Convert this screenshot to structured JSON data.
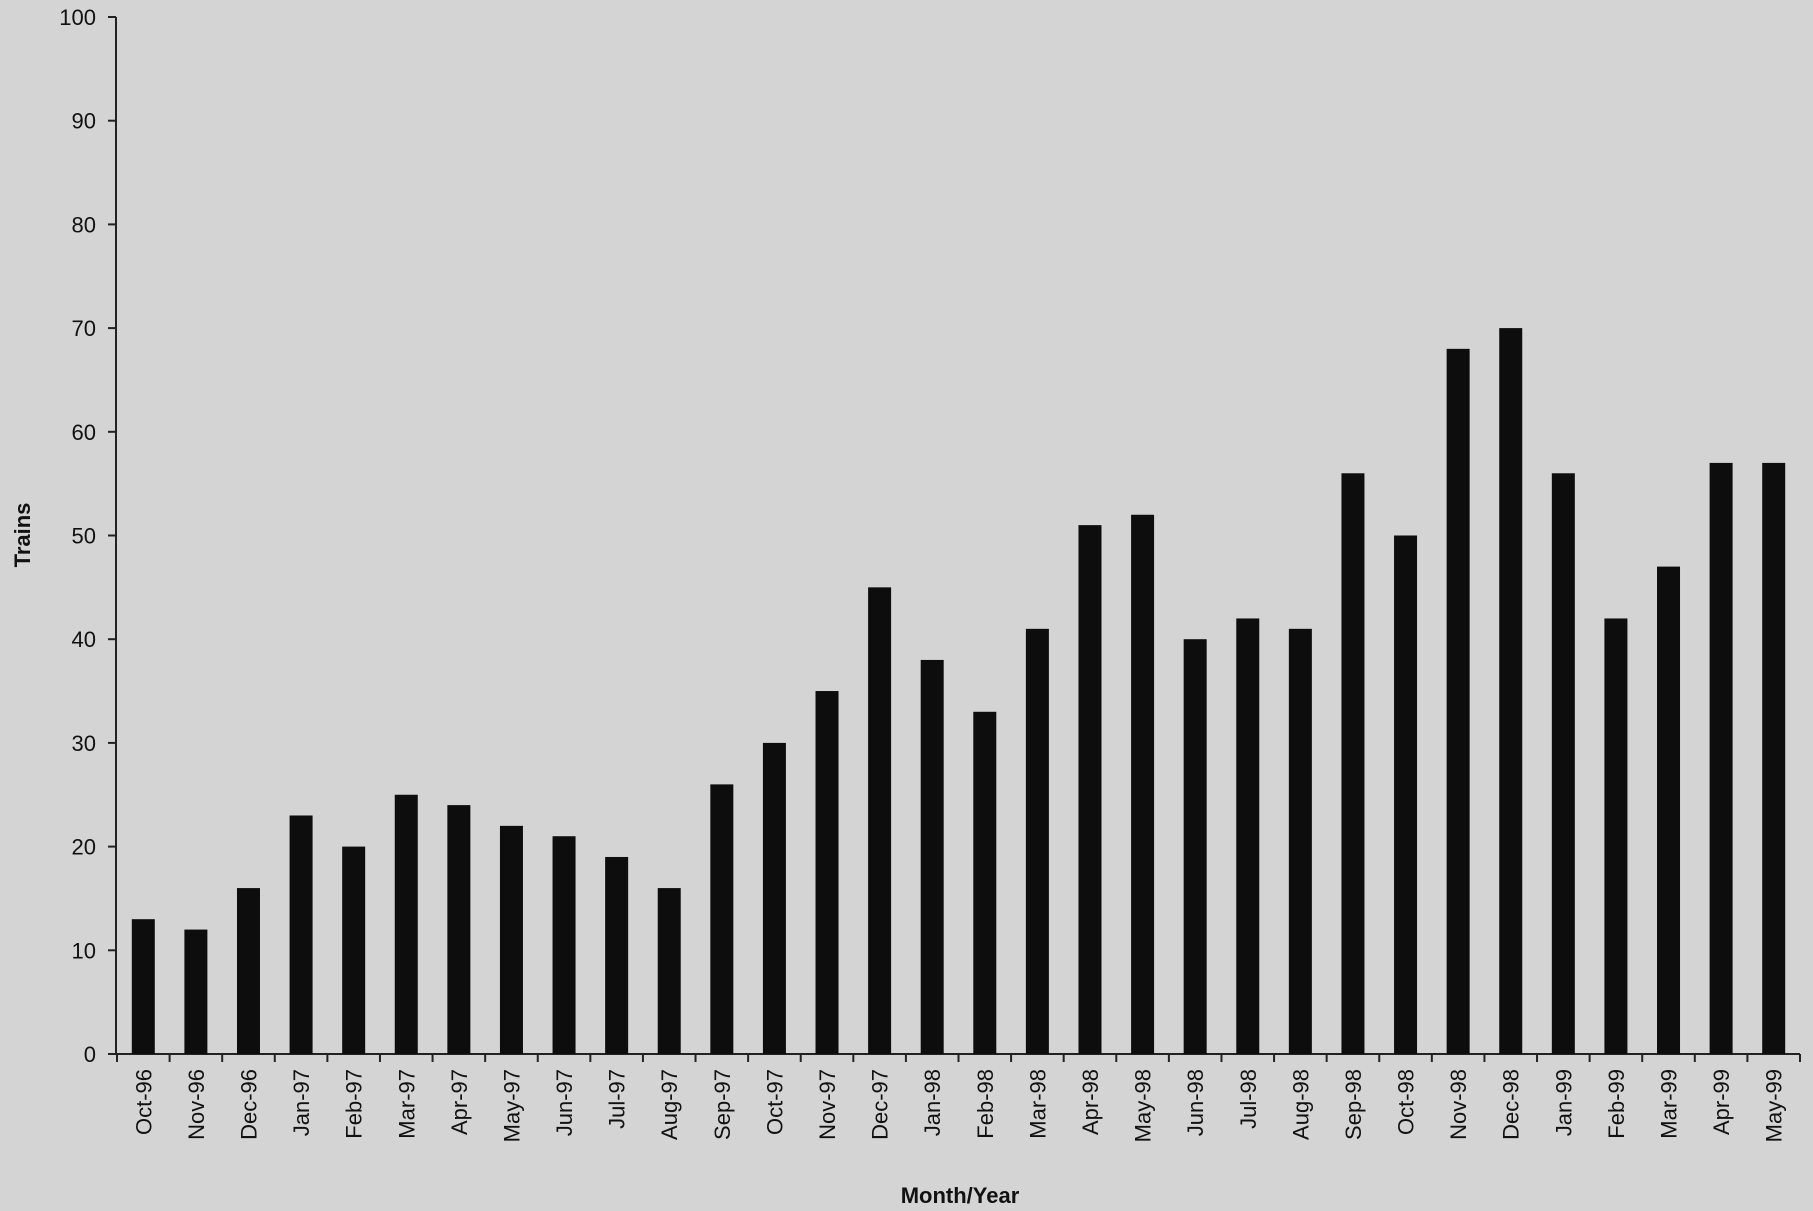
{
  "chart_data": {
    "type": "bar",
    "title": "",
    "xlabel": "Month/Year",
    "ylabel": "Trains",
    "ylim": [
      0,
      100
    ],
    "yticks": [
      0,
      10,
      20,
      30,
      40,
      50,
      60,
      70,
      80,
      90,
      100
    ],
    "grid": false,
    "bar_color": "#0d0d0d",
    "background_color": "#d4d4d4",
    "categories": [
      "Oct-96",
      "Nov-96",
      "Dec-96",
      "Jan-97",
      "Feb-97",
      "Mar-97",
      "Apr-97",
      "May-97",
      "Jun-97",
      "Jul-97",
      "Aug-97",
      "Sep-97",
      "Oct-97",
      "Nov-97",
      "Dec-97",
      "Jan-98",
      "Feb-98",
      "Mar-98",
      "Apr-98",
      "May-98",
      "Jun-98",
      "Jul-98",
      "Aug-98",
      "Sep-98",
      "Oct-98",
      "Nov-98",
      "Dec-98",
      "Jan-99",
      "Feb-99",
      "Mar-99",
      "Apr-99",
      "May-99"
    ],
    "values": [
      13,
      12,
      16,
      23,
      20,
      25,
      24,
      22,
      21,
      19,
      16,
      26,
      30,
      35,
      45,
      38,
      33,
      41,
      51,
      52,
      40,
      42,
      41,
      56,
      50,
      68,
      70,
      56,
      42,
      47,
      57,
      57
    ]
  }
}
